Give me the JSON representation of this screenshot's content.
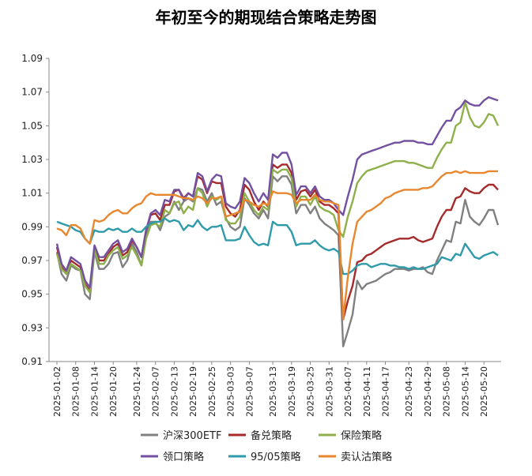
{
  "chart_data": {
    "type": "line",
    "title": "年初至今的期现结合策略走势图",
    "ylim": [
      0.91,
      1.09
    ],
    "yticks": [
      "0.91",
      "0.93",
      "0.95",
      "0.97",
      "0.99",
      "1.01",
      "1.03",
      "1.05",
      "1.07",
      "1.09"
    ],
    "xtick_labels": [
      "2025-01-02",
      "2025-01-08",
      "2025-01-14",
      "2025-01-20",
      "2025-01-24",
      "2025-02-07",
      "2025-02-13",
      "2025-02-19",
      "2025-02-25",
      "2025-03-03",
      "2025-03-07",
      "2025-03-13",
      "2025-03-19",
      "2025-03-25",
      "2025-03-31",
      "2025-04-07",
      "2025-04-11",
      "2025-04-17",
      "2025-04-23",
      "2025-04-29",
      "2025-05-08",
      "2025-05-14",
      "2025-05-20"
    ],
    "legend_position": "bottom",
    "series": [
      {
        "name": "沪深300ETF",
        "color": "#808080",
        "values": [
          0.975,
          0.962,
          0.958,
          0.967,
          0.965,
          0.964,
          0.95,
          0.947,
          0.975,
          0.965,
          0.965,
          0.968,
          0.974,
          0.975,
          0.966,
          0.97,
          0.98,
          0.975,
          0.967,
          0.985,
          0.993,
          0.993,
          0.988,
          0.996,
          0.998,
          1.005,
          1.0,
          1.005,
          1.007,
          1.005,
          1.013,
          1.012,
          1.005,
          1.01,
          1.003,
          1.005,
          0.995,
          0.99,
          0.988,
          0.99,
          1.007,
          1.003,
          0.998,
          0.995,
          1.0,
          0.995,
          1.02,
          1.017,
          1.02,
          1.02,
          1.015,
          0.998,
          1.003,
          1.003,
          0.998,
          1.002,
          0.995,
          0.992,
          0.99,
          0.988,
          0.985,
          0.919,
          0.928,
          0.938,
          0.958,
          0.953,
          0.956,
          0.957,
          0.958,
          0.96,
          0.962,
          0.963,
          0.965,
          0.965,
          0.965,
          0.964,
          0.965,
          0.965,
          0.966,
          0.963,
          0.962,
          0.97,
          0.976,
          0.982,
          0.981,
          0.993,
          0.992,
          1.006,
          0.996,
          0.993,
          0.991,
          0.995,
          1.0,
          1.0,
          0.991
        ]
      },
      {
        "name": "备兑策略",
        "color": "#a52a2a",
        "values": [
          0.978,
          0.966,
          0.962,
          0.97,
          0.968,
          0.966,
          0.956,
          0.952,
          0.978,
          0.97,
          0.97,
          0.974,
          0.978,
          0.98,
          0.973,
          0.975,
          0.982,
          0.978,
          0.972,
          0.988,
          0.997,
          0.998,
          0.994,
          1.003,
          1.003,
          1.011,
          1.012,
          1.007,
          1.01,
          1.008,
          1.02,
          1.018,
          1.01,
          1.017,
          1.016,
          1.016,
          1.002,
          0.998,
          0.996,
          1.0,
          1.015,
          1.012,
          1.005,
          1.0,
          1.005,
          1.002,
          1.027,
          1.025,
          1.027,
          1.027,
          1.022,
          1.006,
          1.011,
          1.012,
          1.008,
          1.012,
          1.005,
          1.003,
          1.003,
          1.001,
          0.998,
          0.935,
          0.946,
          0.955,
          0.969,
          0.97,
          0.973,
          0.974,
          0.976,
          0.978,
          0.98,
          0.981,
          0.982,
          0.983,
          0.983,
          0.983,
          0.984,
          0.982,
          0.981,
          0.982,
          0.983,
          0.99,
          0.996,
          1.0,
          1.0,
          1.007,
          1.008,
          1.013,
          1.011,
          1.01,
          1.01,
          1.013,
          1.015,
          1.015,
          1.012
        ]
      },
      {
        "name": "保险策略",
        "color": "#8db04a",
        "values": [
          0.974,
          0.965,
          0.962,
          0.968,
          0.966,
          0.964,
          0.955,
          0.951,
          0.976,
          0.968,
          0.968,
          0.973,
          0.976,
          0.978,
          0.971,
          0.973,
          0.978,
          0.973,
          0.967,
          0.983,
          0.991,
          0.992,
          0.99,
          1.0,
          0.998,
          1.004,
          1.005,
          0.998,
          1.002,
          1.0,
          1.013,
          1.01,
          1.002,
          1.008,
          1.006,
          1.008,
          0.994,
          0.992,
          0.992,
          0.996,
          1.01,
          1.005,
          1.0,
          0.997,
          1.002,
          1.0,
          1.024,
          1.022,
          1.024,
          1.024,
          1.019,
          1.002,
          1.008,
          1.008,
          1.003,
          1.008,
          1.002,
          1.0,
          0.999,
          0.997,
          0.988,
          0.984,
          0.996,
          1.005,
          1.016,
          1.02,
          1.023,
          1.024,
          1.025,
          1.026,
          1.027,
          1.028,
          1.029,
          1.029,
          1.029,
          1.028,
          1.028,
          1.027,
          1.026,
          1.025,
          1.025,
          1.031,
          1.036,
          1.04,
          1.04,
          1.05,
          1.052,
          1.064,
          1.055,
          1.05,
          1.049,
          1.052,
          1.057,
          1.056,
          1.05
        ]
      },
      {
        "name": "领口策略",
        "color": "#7350a0",
        "values": [
          0.98,
          0.968,
          0.964,
          0.972,
          0.97,
          0.968,
          0.958,
          0.954,
          0.979,
          0.972,
          0.972,
          0.976,
          0.98,
          0.982,
          0.975,
          0.977,
          0.983,
          0.978,
          0.972,
          0.988,
          0.998,
          1.0,
          0.997,
          1.006,
          1.005,
          1.012,
          1.012,
          1.006,
          1.01,
          1.008,
          1.022,
          1.02,
          1.011,
          1.018,
          1.021,
          1.02,
          1.004,
          1.002,
          1.001,
          1.005,
          1.019,
          1.016,
          1.01,
          1.005,
          1.01,
          1.006,
          1.033,
          1.031,
          1.034,
          1.034,
          1.027,
          1.009,
          1.014,
          1.014,
          1.01,
          1.014,
          1.008,
          1.006,
          1.006,
          1.004,
          1.0,
          0.997,
          1.008,
          1.018,
          1.03,
          1.033,
          1.034,
          1.035,
          1.036,
          1.037,
          1.038,
          1.039,
          1.04,
          1.04,
          1.041,
          1.041,
          1.041,
          1.04,
          1.04,
          1.039,
          1.039,
          1.044,
          1.049,
          1.053,
          1.053,
          1.059,
          1.061,
          1.065,
          1.063,
          1.062,
          1.062,
          1.065,
          1.067,
          1.066,
          1.065
        ]
      },
      {
        "name": "95/05策略",
        "color": "#2e9aaa",
        "values": [
          0.993,
          0.992,
          0.991,
          0.99,
          0.988,
          0.987,
          0.983,
          0.98,
          0.988,
          0.987,
          0.987,
          0.989,
          0.988,
          0.989,
          0.987,
          0.987,
          0.989,
          0.987,
          0.987,
          0.99,
          0.992,
          0.993,
          0.993,
          0.995,
          0.993,
          0.994,
          0.993,
          0.988,
          0.991,
          0.99,
          0.994,
          0.99,
          0.988,
          0.99,
          0.99,
          0.991,
          0.982,
          0.982,
          0.982,
          0.983,
          0.99,
          0.985,
          0.981,
          0.979,
          0.98,
          0.979,
          0.993,
          0.991,
          0.991,
          0.991,
          0.987,
          0.979,
          0.98,
          0.98,
          0.98,
          0.982,
          0.979,
          0.977,
          0.976,
          0.977,
          0.975,
          0.962,
          0.962,
          0.964,
          0.967,
          0.968,
          0.968,
          0.966,
          0.967,
          0.968,
          0.968,
          0.967,
          0.967,
          0.966,
          0.966,
          0.965,
          0.966,
          0.965,
          0.965,
          0.966,
          0.967,
          0.968,
          0.972,
          0.971,
          0.97,
          0.974,
          0.973,
          0.98,
          0.976,
          0.972,
          0.971,
          0.973,
          0.974,
          0.975,
          0.973
        ]
      },
      {
        "name": "卖认沽策略",
        "color": "#e8872e",
        "values": [
          0.989,
          0.988,
          0.985,
          0.991,
          0.991,
          0.989,
          0.983,
          0.98,
          0.994,
          0.993,
          0.994,
          0.997,
          0.999,
          1.0,
          0.998,
          0.998,
          1.001,
          1.003,
          1.004,
          1.008,
          1.01,
          1.009,
          1.009,
          1.009,
          1.009,
          1.009,
          1.008,
          1.007,
          1.007,
          1.006,
          1.008,
          1.007,
          1.004,
          1.007,
          1.007,
          1.008,
          0.996,
          0.997,
          0.998,
          0.999,
          1.006,
          1.005,
          1.003,
          1.002,
          1.004,
          1.003,
          1.011,
          1.01,
          1.01,
          1.01,
          1.009,
          1.004,
          1.006,
          1.006,
          1.006,
          1.009,
          1.006,
          1.005,
          1.005,
          1.004,
          1.003,
          0.935,
          0.96,
          0.98,
          0.993,
          0.996,
          0.999,
          1.0,
          1.002,
          1.004,
          1.007,
          1.008,
          1.01,
          1.011,
          1.012,
          1.012,
          1.012,
          1.012,
          1.013,
          1.013,
          1.014,
          1.017,
          1.02,
          1.022,
          1.022,
          1.023,
          1.022,
          1.023,
          1.022,
          1.022,
          1.022,
          1.022,
          1.023,
          1.023,
          1.023
        ]
      }
    ]
  }
}
